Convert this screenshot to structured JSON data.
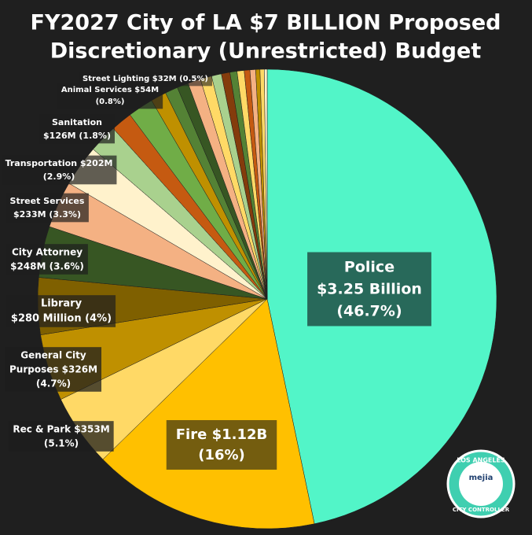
{
  "chart_data": {
    "type": "pie",
    "title": [
      "FY2027 City of LA $7 BILLION Proposed",
      "Discretionary (Unrestricted) Budget"
    ],
    "categories": [
      [
        "Police",
        "$3.25 Billion",
        "(46.7%)"
      ],
      [
        "Fire $1.12B",
        "(16%)"
      ],
      [
        "Rec & Park $353M",
        "(5.1%)"
      ],
      [
        "General City",
        "Purposes $326M",
        "(4.7%)"
      ],
      [
        "Library",
        "$280 Million (4%)"
      ],
      [
        "City Attorney",
        "$248M (3.6%)"
      ],
      [
        "Street Services",
        "$233M (3.3%)"
      ],
      [
        "Transportation $202M",
        "(2.9%)"
      ],
      null,
      null,
      [
        "Sanitation",
        "$126M (1.8%)"
      ],
      null,
      null,
      [
        "Animal Services $54M",
        "(0.8%)"
      ],
      null,
      null,
      null,
      null,
      [
        "Street Lighting $32M (0.5%)"
      ],
      null,
      null,
      null,
      null,
      null,
      null
    ],
    "values": [
      46.7,
      16,
      5.1,
      4.7,
      4,
      3.6,
      3.3,
      2.9,
      2.0,
      1.5,
      1.8,
      1.1,
      0.9,
      0.8,
      0.9,
      0.8,
      0.7,
      0.6,
      0.5,
      0.5,
      0.4,
      0.4,
      0.3,
      0.3,
      0.2
    ],
    "colors": [
      "#52f5c8",
      "#ffc000",
      "#ffd966",
      "#bf9000",
      "#7f6000",
      "#375623",
      "#f4b183",
      "#fff2cc",
      "#a9d18e",
      "#c55a11",
      "#70ad47",
      "#bf9000",
      "#548235",
      "#375623",
      "#f4b183",
      "#ffd966",
      "#a9d18e",
      "#843c0c",
      "#548235",
      "#ffd966",
      "#c55a11",
      "#f4b183",
      "#bf9000",
      "#ffd966",
      "#fff2cc"
    ],
    "logo": {
      "top": "LOS ANGELES",
      "name": "mejia",
      "bottom": "CITY CONTROLLER"
    }
  }
}
